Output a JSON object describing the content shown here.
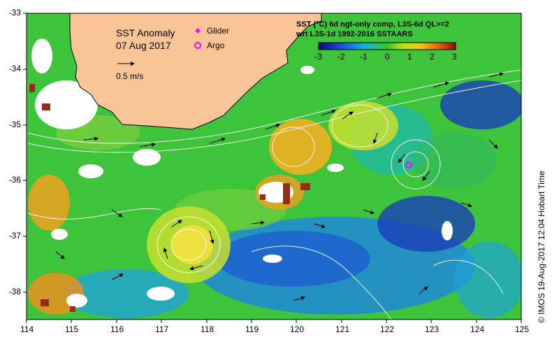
{
  "map": {
    "title": "SST Anomaly",
    "date": "07 Aug 2017",
    "scale_label": "0.5 m/s",
    "legend": {
      "glider": "Glider",
      "argo": "Argo"
    },
    "header_line1": "SST (°C) 6d ngt-only comp, L3S-6d QL>=2",
    "header_line2": "wrt L3S-1d 1992-2016 SSTAARS",
    "colorbar": {
      "ticks": [
        "-3",
        "-2",
        "-1",
        "0",
        "1",
        "2",
        "3"
      ],
      "min": -3,
      "max": 3
    },
    "x_ticks": [
      "114",
      "115",
      "116",
      "117",
      "118",
      "119",
      "120",
      "121",
      "122",
      "123",
      "124",
      "125"
    ],
    "y_ticks": [
      "-33",
      "-34",
      "-35",
      "-36",
      "-37",
      "-38"
    ],
    "credit": "© IMOS 19-Aug-2017 12:04 Hobart Time",
    "colors": {
      "land": "#f9c597",
      "glider": "#ff00ff",
      "argo": "#ff00ff"
    }
  }
}
